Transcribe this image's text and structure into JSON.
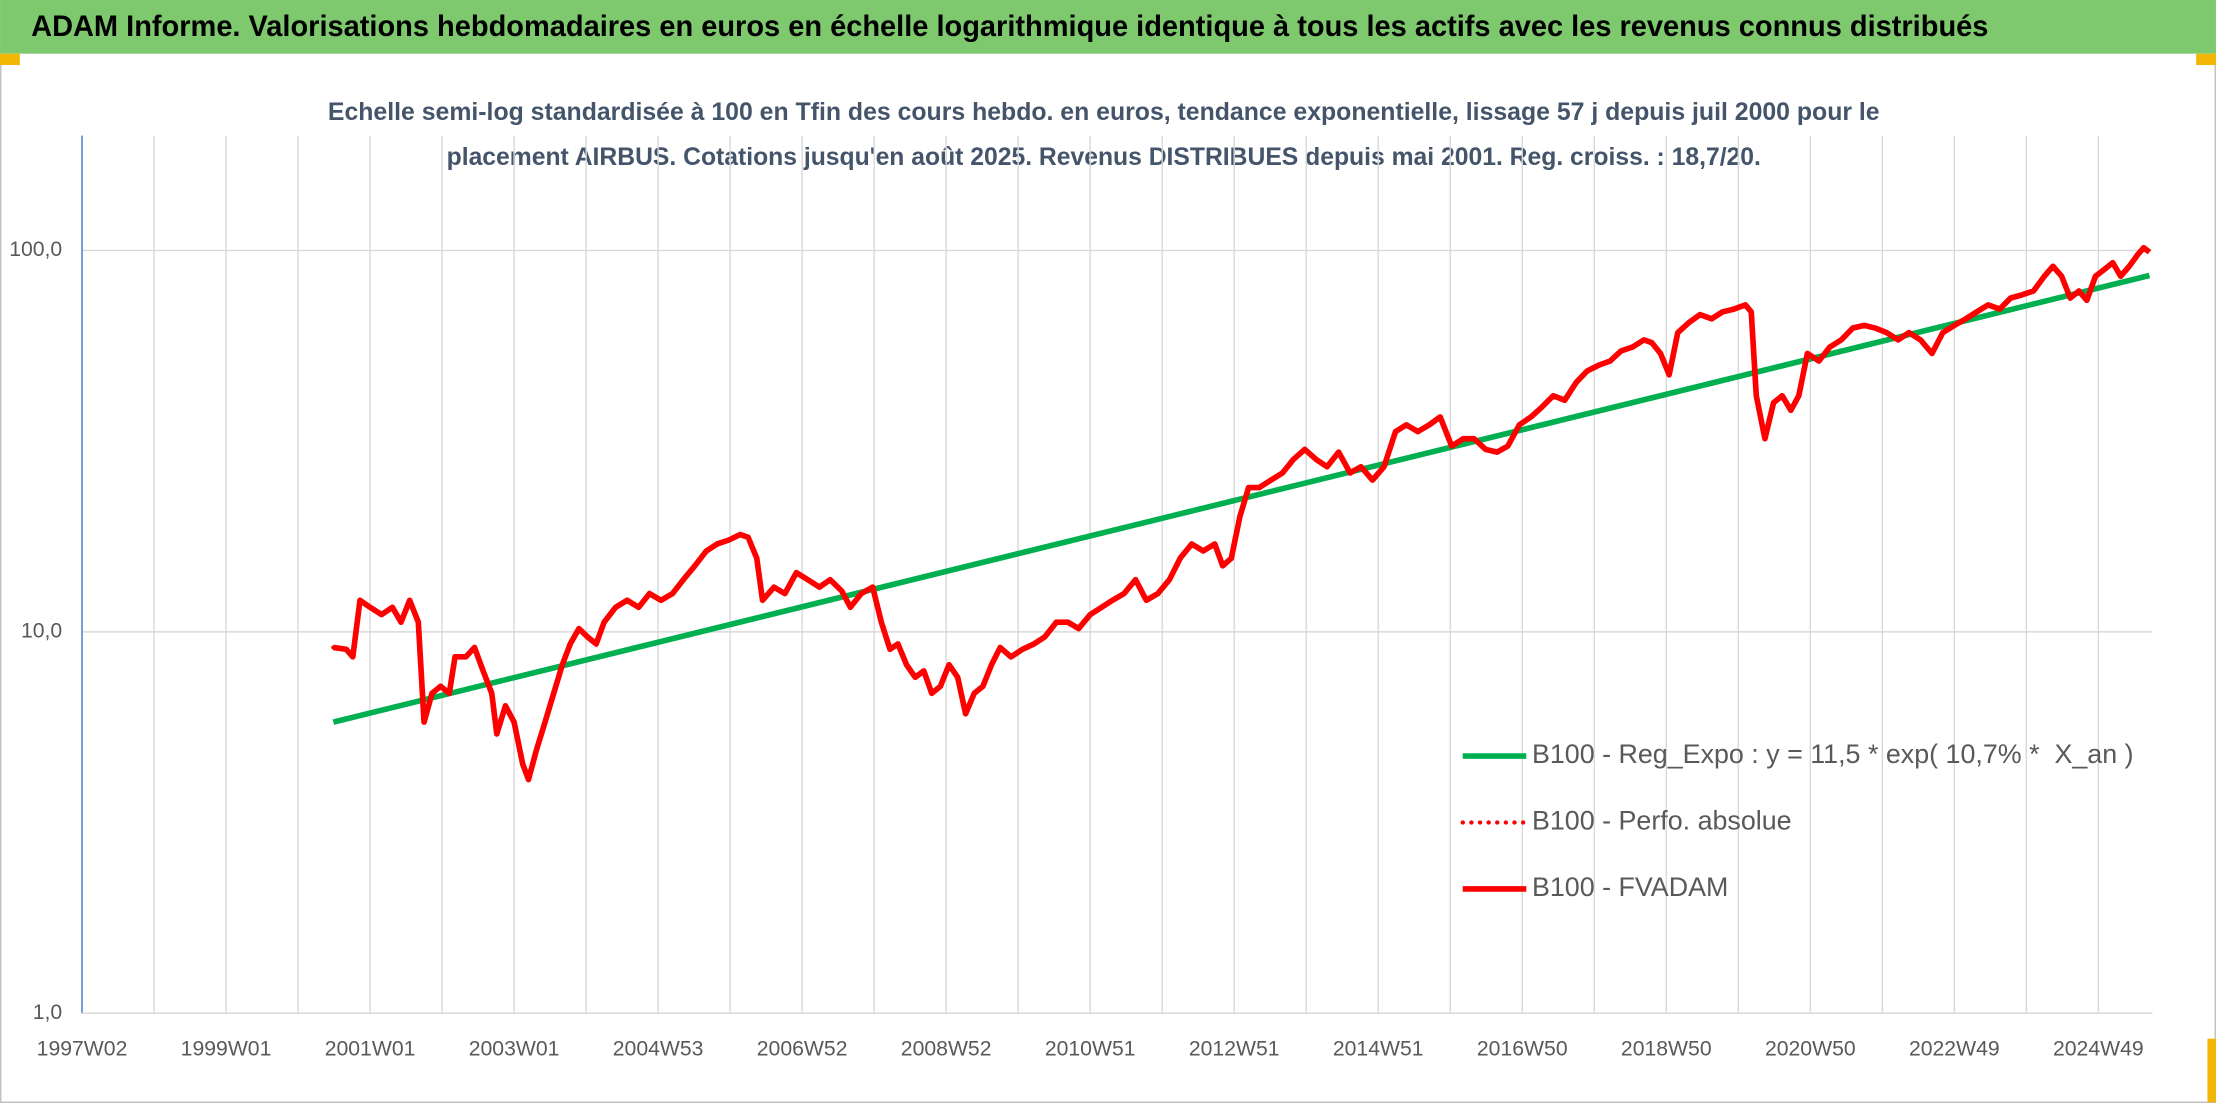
{
  "chart_data": {
    "type": "line",
    "title": "ADAM Informe. Valorisations hebdomadaires en euros en échelle logarithmique identique à tous les actifs avec les revenus connus distribués",
    "subtitle": [
      "Echelle semi-log standardisée à 100 en Tfin des cours hebdo. en euros, tendance exponentielle, lissage 57 j depuis juil 2000 pour le",
      "placement AIRBUS. Cotations jusqu'en août 2025. Revenus DISTRIBUES depuis mai 2001. Reg. croiss. : 18,7/20."
    ],
    "xlim": [
      1997.0,
      2025.75
    ],
    "xticks": [
      {
        "value": 1997.0,
        "label": "1997W02"
      },
      {
        "value": 1999.0,
        "label": "1999W01"
      },
      {
        "value": 2001.0,
        "label": "2001W01"
      },
      {
        "value": 2003.0,
        "label": "2003W01"
      },
      {
        "value": 2005.0,
        "label": "2004W53"
      },
      {
        "value": 2007.0,
        "label": "2006W52"
      },
      {
        "value": 2009.0,
        "label": "2008W52"
      },
      {
        "value": 2011.0,
        "label": "2010W51"
      },
      {
        "value": 2013.0,
        "label": "2012W51"
      },
      {
        "value": 2015.0,
        "label": "2014W51"
      },
      {
        "value": 2017.0,
        "label": "2016W50"
      },
      {
        "value": 2019.0,
        "label": "2018W50"
      },
      {
        "value": 2021.0,
        "label": "2020W50"
      },
      {
        "value": 2023.0,
        "label": "2022W49"
      },
      {
        "value": 2025.0,
        "label": "2024W49"
      }
    ],
    "ylim": [
      1,
      200
    ],
    "yticks": [
      {
        "value": 1,
        "label": "1,0"
      },
      {
        "value": 10,
        "label": "10,0"
      },
      {
        "value": 100,
        "label": "100,0"
      }
    ],
    "log_y": true,
    "grid": true,
    "legend": "lower right",
    "series": [
      {
        "name": "B100 - Reg_Expo : y = 11,5 * exp( 10,7% *  X_an )",
        "color": "#00b050",
        "style": "solid",
        "x": [
          2000.49,
          2025.71
        ],
        "values": [
          5.8,
          86
        ]
      },
      {
        "name": "B100 - Perfo. absolue",
        "color": "#ff0000",
        "style": "dotted",
        "x": [
          2000.49,
          2000.67,
          2000.76,
          2000.86,
          2001.0,
          2001.16,
          2001.31,
          2001.43,
          2001.55,
          2001.67,
          2001.75,
          2001.86,
          2001.98,
          2002.1,
          2002.18,
          2002.33,
          2002.45,
          2002.57,
          2002.69,
          2002.76,
          2002.88,
          2003.0,
          2003.12,
          2003.2,
          2003.31,
          2003.43,
          2003.55,
          2003.67,
          2003.78,
          2003.9,
          2004.02,
          2004.14,
          2004.25,
          2004.41,
          2004.57,
          2004.73,
          2004.88,
          2005.04,
          2005.2,
          2005.35,
          2005.51,
          2005.67,
          2005.82,
          2005.98,
          2006.14,
          2006.25,
          2006.37,
          2006.45,
          2006.61,
          2006.76,
          2006.92,
          2007.08,
          2007.24,
          2007.39,
          2007.55,
          2007.67,
          2007.82,
          2007.98,
          2008.1,
          2008.22,
          2008.33,
          2008.45,
          2008.57,
          2008.69,
          2008.8,
          2008.92,
          2009.04,
          2009.16,
          2009.27,
          2009.39,
          2009.51,
          2009.63,
          2009.75,
          2009.9,
          2010.06,
          2010.22,
          2010.37,
          2010.53,
          2010.69,
          2010.84,
          2011.0,
          2011.16,
          2011.31,
          2011.47,
          2011.63,
          2011.78,
          2011.94,
          2012.1,
          2012.25,
          2012.41,
          2012.57,
          2012.73,
          2012.84,
          2012.96,
          2013.08,
          2013.2,
          2013.35,
          2013.51,
          2013.67,
          2013.82,
          2013.98,
          2014.14,
          2014.29,
          2014.45,
          2014.61,
          2014.76,
          2014.92,
          2015.08,
          2015.24,
          2015.39,
          2015.55,
          2015.71,
          2015.86,
          2016.02,
          2016.18,
          2016.33,
          2016.49,
          2016.65,
          2016.8,
          2016.96,
          2017.12,
          2017.27,
          2017.43,
          2017.59,
          2017.75,
          2017.9,
          2018.06,
          2018.22,
          2018.37,
          2018.53,
          2018.69,
          2018.8,
          2018.92,
          2019.04,
          2019.16,
          2019.31,
          2019.47,
          2019.63,
          2019.78,
          2019.94,
          2020.1,
          2020.18,
          2020.25,
          2020.37,
          2020.49,
          2020.61,
          2020.73,
          2020.84,
          2020.96,
          2021.12,
          2021.27,
          2021.43,
          2021.59,
          2021.75,
          2021.9,
          2022.06,
          2022.22,
          2022.37,
          2022.53,
          2022.69,
          2022.84,
          2023.0,
          2023.16,
          2023.31,
          2023.47,
          2023.63,
          2023.78,
          2023.94,
          2024.1,
          2024.25,
          2024.37,
          2024.49,
          2024.61,
          2024.73,
          2024.84,
          2024.96,
          2025.08,
          2025.2,
          2025.31,
          2025.43,
          2025.55,
          2025.63,
          2025.71
        ],
        "values": [
          9.1,
          9.0,
          8.6,
          12.1,
          11.6,
          11.1,
          11.6,
          10.6,
          12.1,
          10.6,
          5.8,
          6.9,
          7.2,
          6.9,
          8.6,
          8.6,
          9.1,
          7.9,
          6.9,
          5.4,
          6.4,
          5.8,
          4.5,
          4.1,
          4.9,
          5.8,
          6.9,
          8.2,
          9.3,
          10.2,
          9.7,
          9.3,
          10.6,
          11.6,
          12.1,
          11.6,
          12.6,
          12.1,
          12.6,
          13.7,
          14.9,
          16.3,
          17.0,
          17.4,
          18.0,
          17.7,
          15.6,
          12.1,
          13.1,
          12.6,
          14.3,
          13.7,
          13.1,
          13.7,
          12.8,
          11.6,
          12.6,
          13.1,
          10.6,
          9.0,
          9.3,
          8.2,
          7.6,
          7.9,
          6.9,
          7.2,
          8.2,
          7.6,
          6.1,
          6.9,
          7.2,
          8.2,
          9.1,
          8.6,
          9.0,
          9.3,
          9.7,
          10.6,
          10.6,
          10.2,
          11.1,
          11.6,
          12.1,
          12.6,
          13.7,
          12.1,
          12.6,
          13.7,
          15.6,
          17.0,
          16.3,
          17.0,
          14.9,
          15.6,
          20.1,
          23.9,
          23.9,
          25.0,
          26.1,
          28.3,
          30.1,
          28.3,
          27.1,
          29.6,
          26.1,
          27.1,
          25.0,
          27.1,
          33.5,
          34.9,
          33.5,
          34.9,
          36.6,
          30.7,
          32.1,
          32.1,
          30.1,
          29.6,
          30.7,
          34.9,
          36.6,
          38.8,
          41.6,
          40.5,
          45.1,
          48.3,
          50.0,
          51.3,
          54.5,
          55.8,
          58.3,
          57.3,
          53.7,
          47.2,
          60.9,
          64.6,
          67.9,
          66.2,
          69.0,
          70.2,
          72.0,
          69.0,
          41.6,
          32.1,
          39.9,
          41.6,
          38.1,
          41.6,
          53.7,
          51.3,
          55.8,
          58.3,
          62.6,
          63.6,
          62.6,
          60.9,
          58.3,
          60.9,
          58.3,
          53.7,
          60.9,
          63.6,
          66.2,
          69.0,
          72.0,
          70.2,
          75.0,
          76.5,
          78.3,
          85.6,
          90.9,
          85.6,
          75.0,
          78.3,
          74.0,
          85.6,
          89.1,
          92.9,
          85.6,
          90.9,
          97.7,
          101.7,
          99.0
        ]
      },
      {
        "name": "B100 - FVADAM",
        "color": "#ff0000",
        "style": "solid",
        "x": [
          2000.49,
          2000.67,
          2000.76,
          2000.86,
          2001.0,
          2001.16,
          2001.31,
          2001.43,
          2001.55,
          2001.67,
          2001.75,
          2001.86,
          2001.98,
          2002.1,
          2002.18,
          2002.33,
          2002.45,
          2002.57,
          2002.69,
          2002.76,
          2002.88,
          2003.0,
          2003.12,
          2003.2,
          2003.31,
          2003.43,
          2003.55,
          2003.67,
          2003.78,
          2003.9,
          2004.02,
          2004.14,
          2004.25,
          2004.41,
          2004.57,
          2004.73,
          2004.88,
          2005.04,
          2005.2,
          2005.35,
          2005.51,
          2005.67,
          2005.82,
          2005.98,
          2006.14,
          2006.25,
          2006.37,
          2006.45,
          2006.61,
          2006.76,
          2006.92,
          2007.08,
          2007.24,
          2007.39,
          2007.55,
          2007.67,
          2007.82,
          2007.98,
          2008.1,
          2008.22,
          2008.33,
          2008.45,
          2008.57,
          2008.69,
          2008.8,
          2008.92,
          2009.04,
          2009.16,
          2009.27,
          2009.39,
          2009.51,
          2009.63,
          2009.75,
          2009.9,
          2010.06,
          2010.22,
          2010.37,
          2010.53,
          2010.69,
          2010.84,
          2011.0,
          2011.16,
          2011.31,
          2011.47,
          2011.63,
          2011.78,
          2011.94,
          2012.1,
          2012.25,
          2012.41,
          2012.57,
          2012.73,
          2012.84,
          2012.96,
          2013.08,
          2013.2,
          2013.35,
          2013.51,
          2013.67,
          2013.82,
          2013.98,
          2014.14,
          2014.29,
          2014.45,
          2014.61,
          2014.76,
          2014.92,
          2015.08,
          2015.24,
          2015.39,
          2015.55,
          2015.71,
          2015.86,
          2016.02,
          2016.18,
          2016.33,
          2016.49,
          2016.65,
          2016.8,
          2016.96,
          2017.12,
          2017.27,
          2017.43,
          2017.59,
          2017.75,
          2017.9,
          2018.06,
          2018.22,
          2018.37,
          2018.53,
          2018.69,
          2018.8,
          2018.92,
          2019.04,
          2019.16,
          2019.31,
          2019.47,
          2019.63,
          2019.78,
          2019.94,
          2020.1,
          2020.18,
          2020.25,
          2020.37,
          2020.49,
          2020.61,
          2020.73,
          2020.84,
          2020.96,
          2021.12,
          2021.27,
          2021.43,
          2021.59,
          2021.75,
          2021.9,
          2022.06,
          2022.22,
          2022.37,
          2022.53,
          2022.69,
          2022.84,
          2023.0,
          2023.16,
          2023.31,
          2023.47,
          2023.63,
          2023.78,
          2023.94,
          2024.1,
          2024.25,
          2024.37,
          2024.49,
          2024.61,
          2024.73,
          2024.84,
          2024.96,
          2025.08,
          2025.2,
          2025.31,
          2025.43,
          2025.55,
          2025.63,
          2025.71
        ],
        "values": [
          9.1,
          9.0,
          8.6,
          12.1,
          11.6,
          11.1,
          11.6,
          10.6,
          12.1,
          10.6,
          5.8,
          6.9,
          7.2,
          6.9,
          8.6,
          8.6,
          9.1,
          7.9,
          6.9,
          5.4,
          6.4,
          5.8,
          4.5,
          4.1,
          4.9,
          5.8,
          6.9,
          8.2,
          9.3,
          10.2,
          9.7,
          9.3,
          10.6,
          11.6,
          12.1,
          11.6,
          12.6,
          12.1,
          12.6,
          13.7,
          14.9,
          16.3,
          17.0,
          17.4,
          18.0,
          17.7,
          15.6,
          12.1,
          13.1,
          12.6,
          14.3,
          13.7,
          13.1,
          13.7,
          12.8,
          11.6,
          12.6,
          13.1,
          10.6,
          9.0,
          9.3,
          8.2,
          7.6,
          7.9,
          6.9,
          7.2,
          8.2,
          7.6,
          6.1,
          6.9,
          7.2,
          8.2,
          9.1,
          8.6,
          9.0,
          9.3,
          9.7,
          10.6,
          10.6,
          10.2,
          11.1,
          11.6,
          12.1,
          12.6,
          13.7,
          12.1,
          12.6,
          13.7,
          15.6,
          17.0,
          16.3,
          17.0,
          14.9,
          15.6,
          20.1,
          23.9,
          23.9,
          25.0,
          26.1,
          28.3,
          30.1,
          28.3,
          27.1,
          29.6,
          26.1,
          27.1,
          25.0,
          27.1,
          33.5,
          34.9,
          33.5,
          34.9,
          36.6,
          30.7,
          32.1,
          32.1,
          30.1,
          29.6,
          30.7,
          34.9,
          36.6,
          38.8,
          41.6,
          40.5,
          45.1,
          48.3,
          50.0,
          51.3,
          54.5,
          55.8,
          58.3,
          57.3,
          53.7,
          47.2,
          60.9,
          64.6,
          67.9,
          66.2,
          69.0,
          70.2,
          72.0,
          69.0,
          41.6,
          32.1,
          39.9,
          41.6,
          38.1,
          41.6,
          53.7,
          51.3,
          55.8,
          58.3,
          62.6,
          63.6,
          62.6,
          60.9,
          58.3,
          60.9,
          58.3,
          53.7,
          60.9,
          63.6,
          66.2,
          69.0,
          72.0,
          70.2,
          75.0,
          76.5,
          78.3,
          85.6,
          90.9,
          85.6,
          75.0,
          78.3,
          74.0,
          85.6,
          89.1,
          92.9,
          85.6,
          90.9,
          97.7,
          101.7,
          99.0
        ]
      }
    ]
  }
}
